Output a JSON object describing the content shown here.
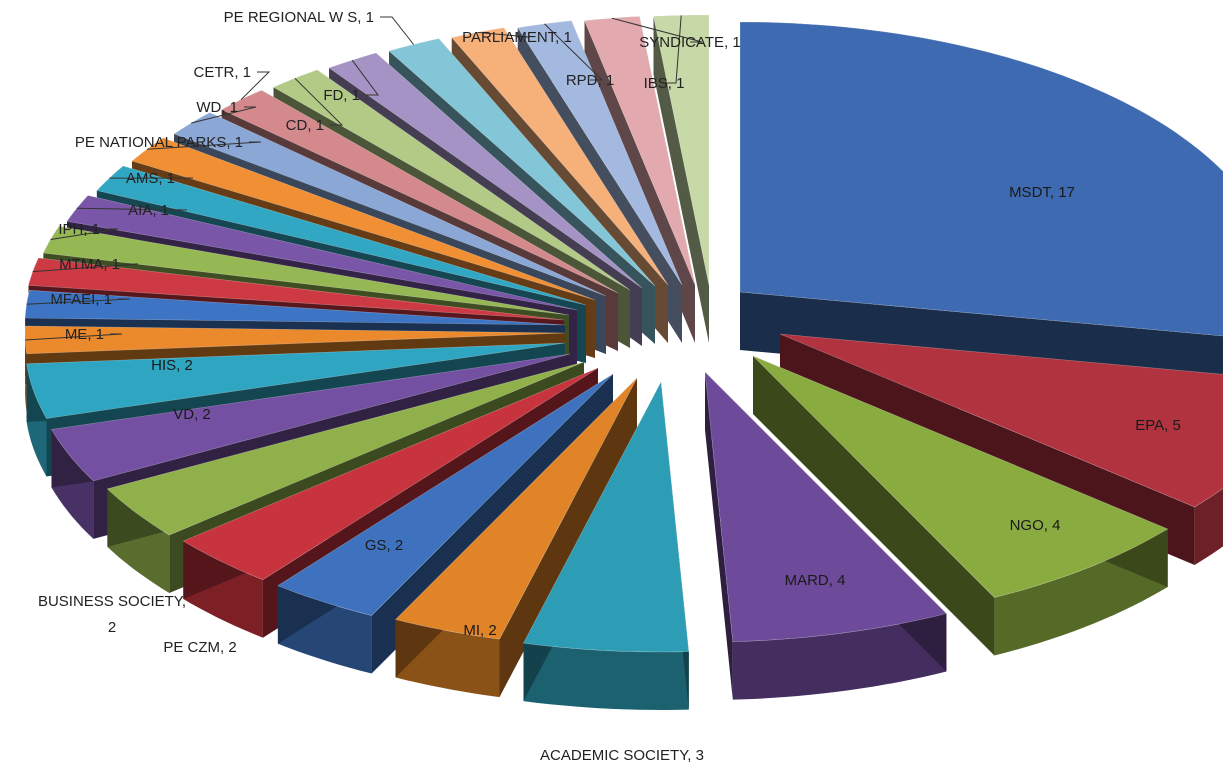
{
  "chart_data": {
    "type": "pie",
    "style": "3d-exploded",
    "legend": "none",
    "slices": [
      {
        "label": "MSDT",
        "value": 17,
        "color": "#3d6ab1"
      },
      {
        "label": "EPA",
        "value": 5,
        "color": "#b23340"
      },
      {
        "label": "NGO",
        "value": 4,
        "color": "#89ab3f"
      },
      {
        "label": "MARD",
        "value": 4,
        "color": "#6e4a9a"
      },
      {
        "label": "ACADEMIC SOCIETY",
        "value": 3,
        "color": "#2d9cb5"
      },
      {
        "label": "MI",
        "value": 2,
        "color": "#e08427"
      },
      {
        "label": "GS",
        "value": 2,
        "color": "#3e72bf"
      },
      {
        "label": "PE CZM",
        "value": 2,
        "color": "#c8343d"
      },
      {
        "label": "BUSINESS SOCIETY",
        "value": 2,
        "color": "#8fb04a"
      },
      {
        "label": "VD",
        "value": 2,
        "color": "#7450a3"
      },
      {
        "label": "HIS",
        "value": 2,
        "color": "#2fa6c1"
      },
      {
        "label": "ME",
        "value": 1,
        "color": "#ea8a2c"
      },
      {
        "label": "MFAEI",
        "value": 1,
        "color": "#3d74c4"
      },
      {
        "label": "MTMA",
        "value": 1,
        "color": "#ce3a44"
      },
      {
        "label": "IPH",
        "value": 1,
        "color": "#95b754"
      },
      {
        "label": "AIA",
        "value": 1,
        "color": "#7a56a8"
      },
      {
        "label": "AMS",
        "value": 1,
        "color": "#31a7c3"
      },
      {
        "label": "PE NATIONAL PARKS",
        "value": 1,
        "color": "#f08f34"
      },
      {
        "label": "WD",
        "value": 1,
        "color": "#8aa7d6"
      },
      {
        "label": "CETR",
        "value": 1,
        "color": "#d48a8d"
      },
      {
        "label": "CD",
        "value": 1,
        "color": "#b2ca86"
      },
      {
        "label": "FD",
        "value": 1,
        "color": "#a593c5"
      },
      {
        "label": "PE REGIONAL W S",
        "value": 1,
        "color": "#82c6d8"
      },
      {
        "label": "PARLIAMENT",
        "value": 1,
        "color": "#f6b07a"
      },
      {
        "label": "RPD",
        "value": 1,
        "color": "#a4b9e0"
      },
      {
        "label": "SYNDICATE",
        "value": 1,
        "color": "#e2aaae"
      },
      {
        "label": "IBS",
        "value": 1,
        "color": "#c6d9a6"
      }
    ]
  }
}
